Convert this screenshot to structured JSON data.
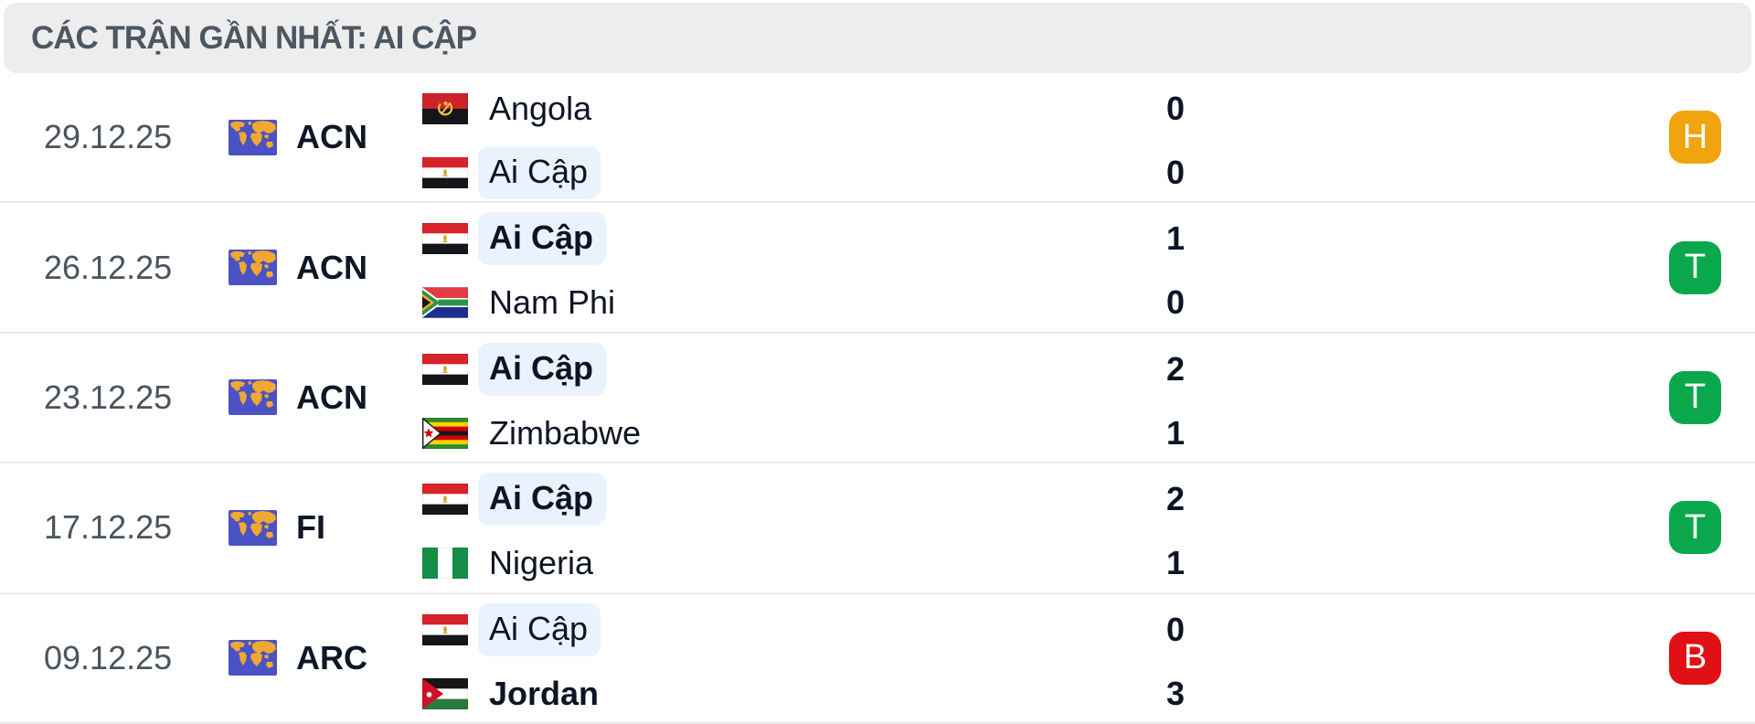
{
  "header": {
    "title": "CÁC TRẬN GẦN NHẤT: AI CẬP"
  },
  "result_colors": {
    "H": "#F1A40E",
    "T": "#0AA74D",
    "B": "#E11014"
  },
  "matches": [
    {
      "date": "29.12.25",
      "competition": "ACN",
      "teams": [
        {
          "name": "Angola",
          "flag": "angola",
          "highlight": false,
          "bold": false
        },
        {
          "name": "Ai Cập",
          "flag": "egypt",
          "highlight": true,
          "bold": false
        }
      ],
      "scores": [
        "0",
        "0"
      ],
      "result": "H"
    },
    {
      "date": "26.12.25",
      "competition": "ACN",
      "teams": [
        {
          "name": "Ai Cập",
          "flag": "egypt",
          "highlight": true,
          "bold": true
        },
        {
          "name": "Nam Phi",
          "flag": "south-africa",
          "highlight": false,
          "bold": false
        }
      ],
      "scores": [
        "1",
        "0"
      ],
      "result": "T"
    },
    {
      "date": "23.12.25",
      "competition": "ACN",
      "teams": [
        {
          "name": "Ai Cập",
          "flag": "egypt",
          "highlight": true,
          "bold": true
        },
        {
          "name": "Zimbabwe",
          "flag": "zimbabwe",
          "highlight": false,
          "bold": false
        }
      ],
      "scores": [
        "2",
        "1"
      ],
      "result": "T"
    },
    {
      "date": "17.12.25",
      "competition": "FI",
      "teams": [
        {
          "name": "Ai Cập",
          "flag": "egypt",
          "highlight": true,
          "bold": true
        },
        {
          "name": "Nigeria",
          "flag": "nigeria",
          "highlight": false,
          "bold": false
        }
      ],
      "scores": [
        "2",
        "1"
      ],
      "result": "T"
    },
    {
      "date": "09.12.25",
      "competition": "ARC",
      "teams": [
        {
          "name": "Ai Cập",
          "flag": "egypt",
          "highlight": true,
          "bold": false
        },
        {
          "name": "Jordan",
          "flag": "jordan",
          "highlight": false,
          "bold": true
        }
      ],
      "scores": [
        "0",
        "3"
      ],
      "result": "B"
    }
  ]
}
